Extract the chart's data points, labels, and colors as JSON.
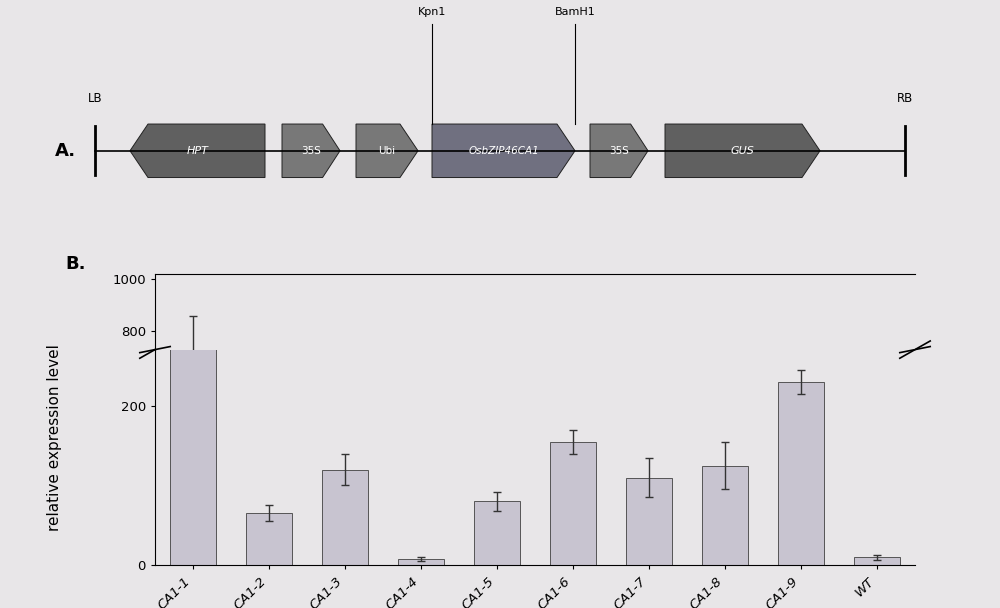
{
  "panel_b": {
    "categories": [
      "CA1-1",
      "CA1-2",
      "CA1-3",
      "CA1-4",
      "CA1-5",
      "CA1-6",
      "CA1-7",
      "CA1-8",
      "CA1-9",
      "WT"
    ],
    "values": [
      730,
      65,
      120,
      8,
      80,
      155,
      110,
      125,
      230,
      10
    ],
    "errors": [
      130,
      10,
      20,
      3,
      12,
      15,
      25,
      30,
      15,
      3
    ],
    "bar_color": "#c8c4d0",
    "bar_edge_color": "#555555",
    "ylabel": "relative expression level",
    "axis_linewidth": 1.0
  },
  "bg_color": "#e8e6e8",
  "label_fontsize": 11,
  "tick_fontsize": 9.5,
  "panel_label_fontsize": 13,
  "box_color_dark": "#606060",
  "box_color_med": "#787878",
  "box_color_osbzip": "#707080"
}
